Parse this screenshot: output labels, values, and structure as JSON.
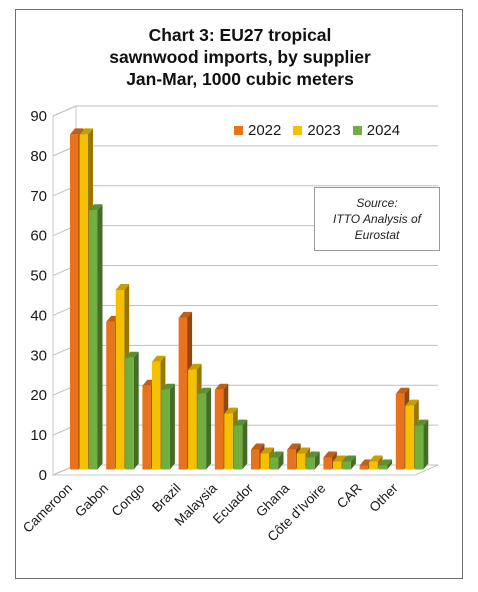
{
  "chart_data": {
    "type": "bar",
    "title_lines": [
      "Chart 3: EU27 tropical",
      "sawnwood imports, by supplier",
      "Jan-Mar, 1000 cubic meters"
    ],
    "categories": [
      "Cameroon",
      "Gabon",
      "Congo",
      "Brazil",
      "Malaysia",
      "Ecuador",
      "Ghana",
      "Côte d'Ivoire",
      "CAR",
      "Other"
    ],
    "series": [
      {
        "name": "2022",
        "color": "#e8731c",
        "values": [
          84,
          37,
          21,
          38,
          20,
          5,
          5,
          3,
          1,
          19
        ]
      },
      {
        "name": "2023",
        "color": "#f5c000",
        "values": [
          84,
          45,
          27,
          25,
          14,
          4,
          4,
          2,
          2,
          16
        ]
      },
      {
        "name": "2024",
        "color": "#6fae3f",
        "values": [
          65,
          28,
          20,
          19,
          11,
          3,
          3,
          2,
          1,
          11
        ]
      }
    ],
    "ylim": [
      0,
      90
    ],
    "yticks": [
      "0",
      "10",
      "20",
      "30",
      "40",
      "50",
      "60",
      "70",
      "80",
      "90"
    ],
    "grid": true,
    "three_d": true,
    "legend_position": "top-right",
    "source_lines": [
      "Source:",
      "ITTO Analysis of",
      "Eurostat"
    ]
  }
}
